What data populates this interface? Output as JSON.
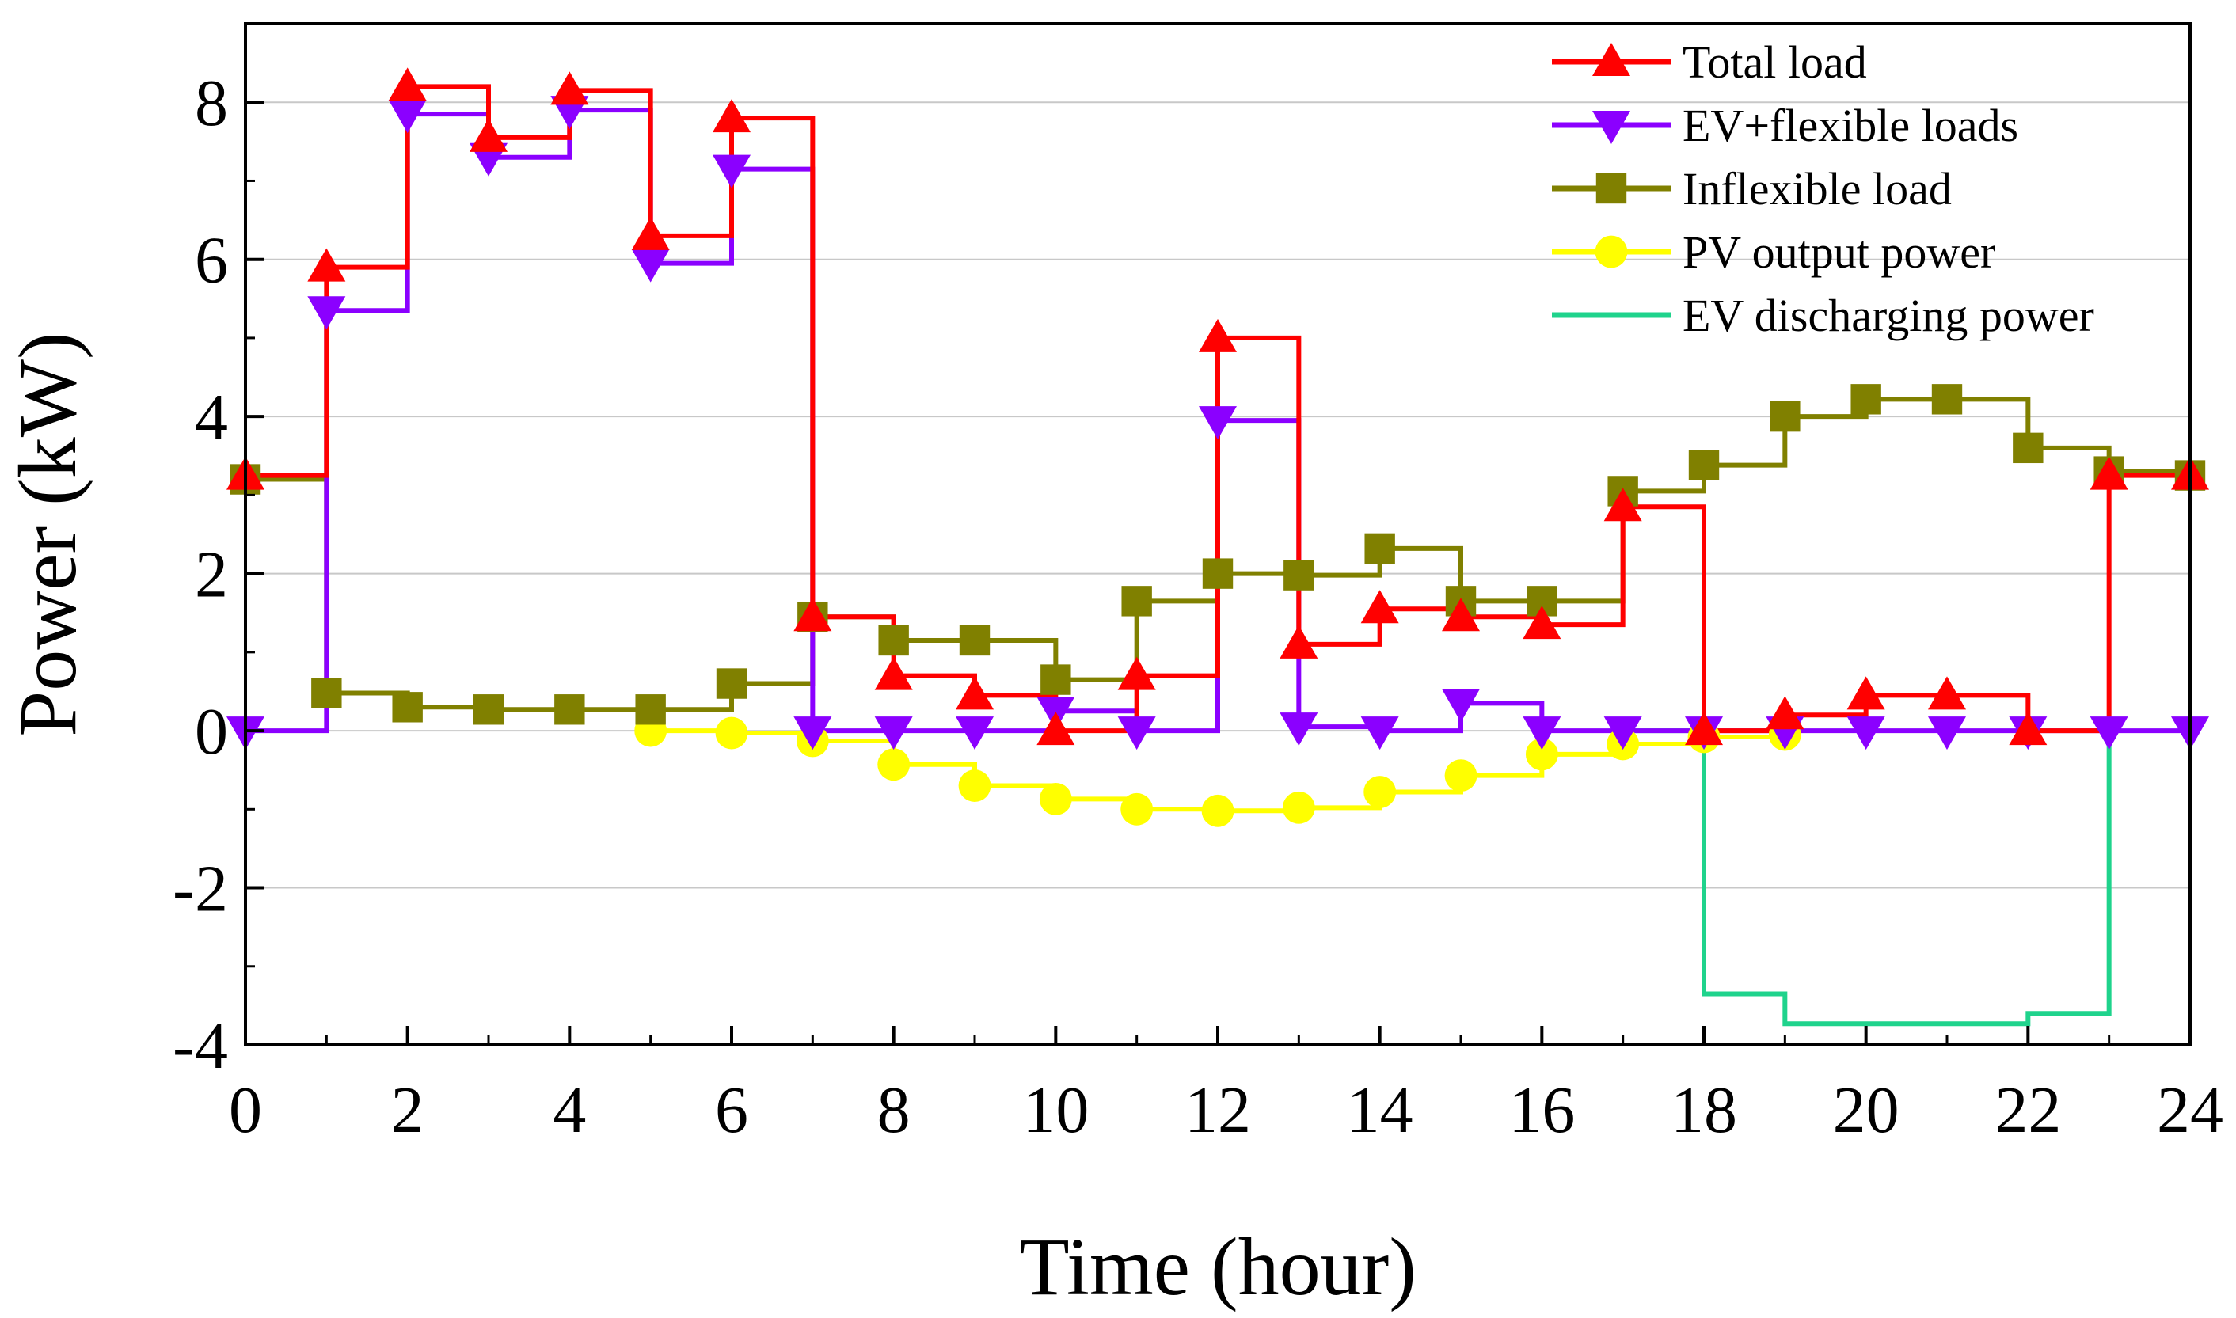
{
  "chart_data": {
    "type": "line",
    "step": true,
    "xlabel": "Time (hour)",
    "ylabel": "Power (kW)",
    "xlim": [
      0,
      24
    ],
    "ylim": [
      -4,
      9
    ],
    "xticks": [
      0,
      2,
      4,
      6,
      8,
      10,
      12,
      14,
      16,
      18,
      20,
      22,
      24
    ],
    "yticks": [
      -4,
      -2,
      0,
      2,
      4,
      6,
      8
    ],
    "grid": "horizontal",
    "legend_position": "top-right",
    "series": [
      {
        "name": "Total load",
        "color": "#ff0000",
        "marker": "triangle-up",
        "x": [
          0,
          1,
          2,
          3,
          4,
          5,
          6,
          7,
          8,
          9,
          10,
          11,
          12,
          13,
          14,
          15,
          16,
          17,
          18,
          19,
          20,
          21,
          22,
          23,
          24
        ],
        "y": [
          3.25,
          5.9,
          8.2,
          7.55,
          8.15,
          6.3,
          7.8,
          1.45,
          0.7,
          0.45,
          0.0,
          0.7,
          5.0,
          1.1,
          1.55,
          1.45,
          1.35,
          2.85,
          0.0,
          0.2,
          0.45,
          0.45,
          0.0,
          3.25,
          3.25
        ]
      },
      {
        "name": "EV+flexible loads",
        "color": "#8b00ff",
        "marker": "triangle-down",
        "x": [
          0,
          1,
          2,
          3,
          4,
          5,
          6,
          7,
          8,
          9,
          10,
          11,
          12,
          13,
          14,
          15,
          16,
          17,
          18,
          19,
          20,
          21,
          22,
          23,
          24
        ],
        "y": [
          0.0,
          5.35,
          7.85,
          7.3,
          7.9,
          5.95,
          7.15,
          0.0,
          0.0,
          0.0,
          0.25,
          0.0,
          3.95,
          0.05,
          0.0,
          0.35,
          0.0,
          0.0,
          0.0,
          0.0,
          0.0,
          0.0,
          0.0,
          0.0,
          0.0
        ]
      },
      {
        "name": "Inflexible load",
        "color": "#808000",
        "marker": "square",
        "x": [
          0,
          1,
          2,
          3,
          4,
          5,
          6,
          7,
          8,
          9,
          10,
          11,
          12,
          13,
          14,
          15,
          16,
          17,
          18,
          19,
          20,
          21,
          22,
          23,
          24
        ],
        "y": [
          3.2,
          0.48,
          0.3,
          0.27,
          0.27,
          0.27,
          0.6,
          1.45,
          1.15,
          1.15,
          0.65,
          1.65,
          2.0,
          1.98,
          2.32,
          1.65,
          1.65,
          3.05,
          3.38,
          4.0,
          4.22,
          4.22,
          3.6,
          3.3,
          3.25
        ]
      },
      {
        "name": "PV output power",
        "color": "#ffff00",
        "marker": "circle",
        "x": [
          5,
          6,
          7,
          8,
          9,
          10,
          11,
          12,
          13,
          14,
          15,
          16,
          17,
          18,
          19
        ],
        "y": [
          0.0,
          -0.03,
          -0.13,
          -0.43,
          -0.7,
          -0.87,
          -1.0,
          -1.02,
          -0.98,
          -0.78,
          -0.57,
          -0.3,
          -0.17,
          -0.08,
          -0.05
        ]
      },
      {
        "name": "EV discharging power",
        "color": "#1fd38c",
        "marker": "none",
        "x": [
          17,
          18,
          19,
          20,
          21,
          22,
          23
        ],
        "y": [
          0.0,
          -3.35,
          -3.73,
          -3.73,
          -3.73,
          -3.6,
          0.0
        ]
      }
    ]
  }
}
